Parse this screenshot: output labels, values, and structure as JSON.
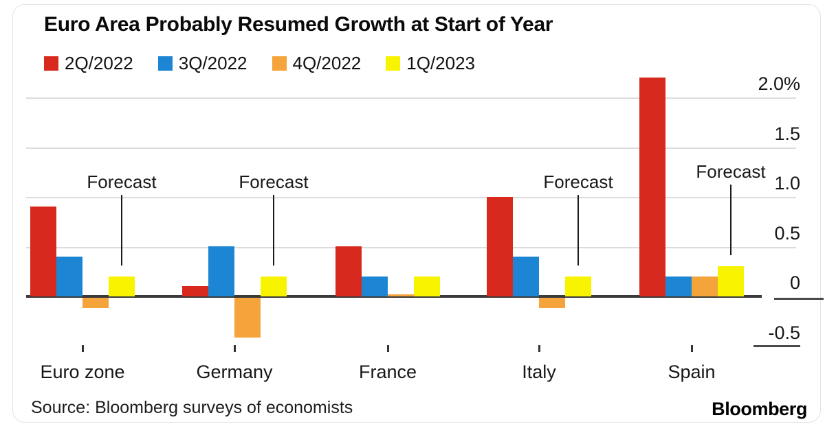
{
  "title": "Euro Area Probably Resumed Growth at Start of Year",
  "source": "Source: Bloomberg surveys of economists",
  "brand": "Bloomberg",
  "chart_data": {
    "type": "bar",
    "title": "Euro Area Probably Resumed Growth at Start of Year",
    "categories": [
      "Euro zone",
      "Germany",
      "France",
      "Italy",
      "Spain"
    ],
    "series": [
      {
        "name": "2Q/2022",
        "color": "#d8291f",
        "values": [
          0.9,
          0.1,
          0.5,
          1.0,
          2.2
        ]
      },
      {
        "name": "3Q/2022",
        "color": "#1d86d4",
        "values": [
          0.4,
          0.5,
          0.2,
          0.4,
          0.2
        ]
      },
      {
        "name": "4Q/2022",
        "color": "#f5a43b",
        "values": [
          -0.1,
          -0.4,
          0.02,
          -0.1,
          0.2
        ]
      },
      {
        "name": "1Q/2023",
        "color": "#f8f400",
        "values": [
          0.2,
          0.2,
          0.2,
          0.2,
          0.3
        ]
      }
    ],
    "unit": "%",
    "yticks": [
      {
        "label": "2.0%",
        "value": 2.0
      },
      {
        "label": "1.5",
        "value": 1.5
      },
      {
        "label": "1.0",
        "value": 1.0
      },
      {
        "label": "0.5",
        "value": 0.5
      },
      {
        "label": "0",
        "value": 0
      },
      {
        "label": "-0.5",
        "value": -0.5
      }
    ],
    "ylim": [
      -0.5,
      2.25
    ],
    "grid": "horizontal",
    "legend_position": "top",
    "axis_side": "right",
    "annotations": [
      {
        "label": "Forecast",
        "category": "Euro zone",
        "series": "1Q/2023"
      },
      {
        "label": "Forecast",
        "category": "Germany",
        "series": "1Q/2023"
      },
      {
        "label": "Forecast",
        "category": "Italy",
        "series": "1Q/2023"
      },
      {
        "label": "Forecast",
        "category": "Spain",
        "series": "1Q/2023"
      }
    ]
  }
}
